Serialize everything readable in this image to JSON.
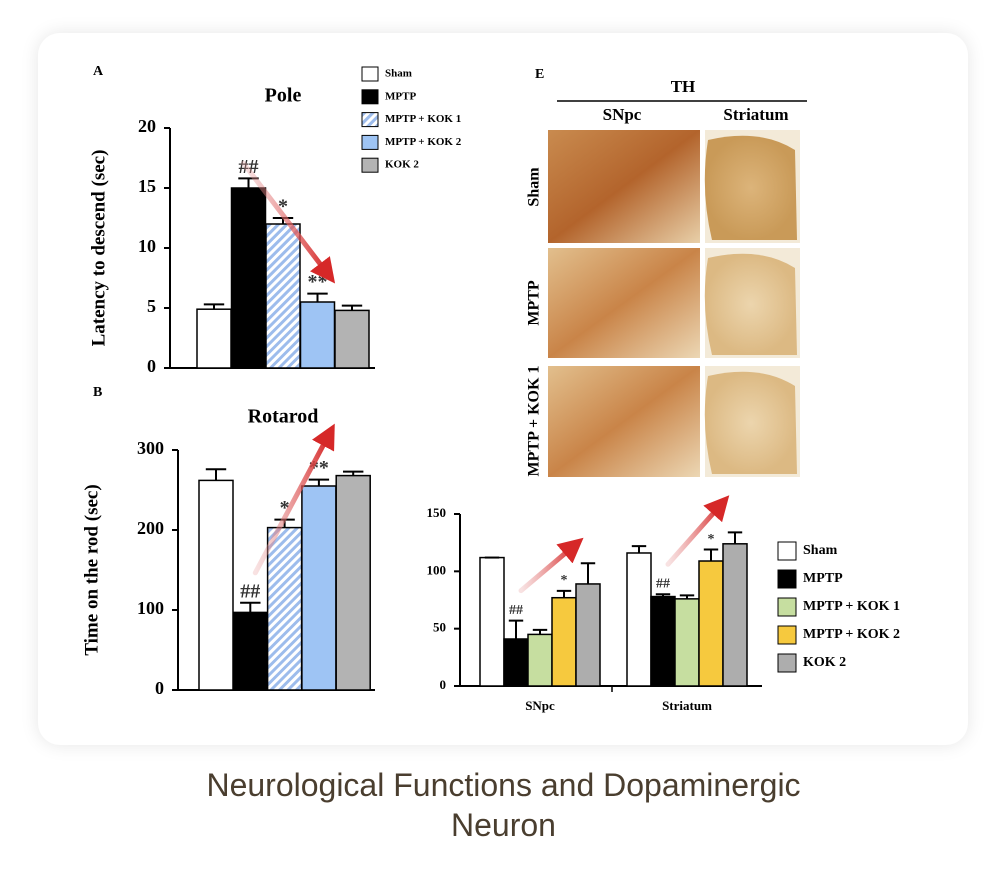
{
  "chart_data": [
    {
      "type": "bar",
      "panel_label": "A",
      "title": "Pole",
      "y_label": "Latency to descend (sec)",
      "ylim": [
        0,
        20
      ],
      "yticks": [
        0,
        5,
        10,
        15,
        20
      ],
      "series": [
        {
          "name": "Sham",
          "color": "#ffffff",
          "values": [
            4.9
          ],
          "errors": [
            0.4
          ],
          "annotations": [
            null
          ]
        },
        {
          "name": "MPTP",
          "color": "#000000",
          "values": [
            15
          ],
          "errors": [
            0.8
          ],
          "annotations": [
            "##"
          ]
        },
        {
          "name": "MPTP + KOK 1",
          "color": "#c4d8f6",
          "pattern": "hatch",
          "values": [
            12
          ],
          "errors": [
            0.5
          ],
          "annotations": [
            "*"
          ]
        },
        {
          "name": "MPTP + KOK 2",
          "color": "#9ec4f4",
          "values": [
            5.5
          ],
          "errors": [
            0.7
          ],
          "annotations": [
            "**"
          ]
        },
        {
          "name": "KOK 2",
          "color": "#b3b3b3",
          "values": [
            4.8
          ],
          "errors": [
            0.4
          ],
          "annotations": [
            null
          ]
        }
      ]
    },
    {
      "type": "bar",
      "panel_label": "B",
      "title": "Rotarod",
      "y_label": "Time on the rod (sec)",
      "ylim": [
        0,
        300
      ],
      "yticks": [
        0,
        100,
        200,
        300
      ],
      "series": [
        {
          "color": "#ffffff",
          "values": [
            262
          ],
          "errors": [
            14
          ],
          "annotations": [
            null
          ]
        },
        {
          "color": "#000000",
          "values": [
            97
          ],
          "errors": [
            12
          ],
          "annotations": [
            "##"
          ]
        },
        {
          "color": "#c4d8f6",
          "pattern": "hatch",
          "values": [
            203
          ],
          "errors": [
            10
          ],
          "annotations": [
            "*"
          ]
        },
        {
          "color": "#9ec4f4",
          "values": [
            255
          ],
          "errors": [
            8
          ],
          "annotations": [
            "**"
          ]
        },
        {
          "color": "#b3b3b3",
          "values": [
            268
          ],
          "errors": [
            5
          ],
          "annotations": [
            null
          ]
        }
      ]
    },
    {
      "type": "bar",
      "categories": [
        "SNpc",
        "Striatum"
      ],
      "ylim": [
        0,
        150
      ],
      "yticks": [
        0,
        50,
        100,
        150
      ],
      "series": [
        {
          "name": "Sham",
          "color": "#ffffff",
          "values": [
            112,
            116
          ],
          "errors": [
            0,
            6
          ],
          "annotations": [
            null,
            null
          ]
        },
        {
          "name": "MPTP",
          "color": "#000000",
          "values": [
            41,
            78
          ],
          "errors": [
            16,
            2
          ],
          "annotations": [
            "##",
            "##"
          ]
        },
        {
          "name": "MPTP + KOK 1",
          "color": "#c6dea0",
          "values": [
            45,
            76
          ],
          "errors": [
            4,
            3
          ],
          "annotations": [
            null,
            null
          ]
        },
        {
          "name": "MPTP + KOK 2",
          "color": "#f6c93e",
          "values": [
            77,
            109
          ],
          "errors": [
            6,
            10
          ],
          "annotations": [
            "*",
            "*"
          ]
        },
        {
          "name": "KOK 2",
          "color": "#adadad",
          "values": [
            89,
            124
          ],
          "errors": [
            18,
            10
          ],
          "annotations": [
            null,
            null
          ]
        }
      ]
    }
  ],
  "image_panel": {
    "label": "E",
    "title": "TH",
    "columns": [
      "SNpc",
      "Striatum"
    ],
    "rows": [
      "Sham",
      "MPTP",
      "MPTP + KOK 1"
    ]
  },
  "caption": "Neurological Functions and Dopaminergic Neuron"
}
